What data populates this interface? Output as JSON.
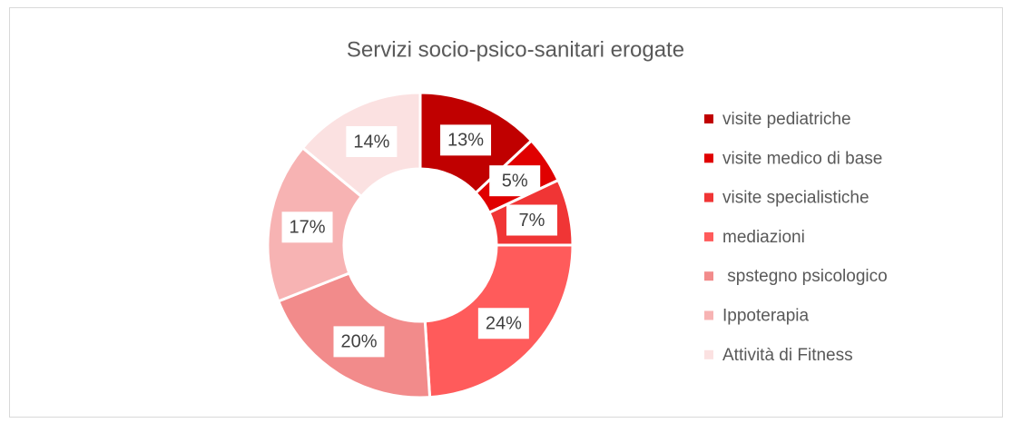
{
  "chart_data": {
    "type": "donut",
    "title": "Servizi socio-psico-sanitari erogate",
    "categories": [
      "visite pediatriche",
      "visite medico di base",
      "visite specialistiche",
      "mediazioni",
      " spstegno psicologico",
      "Ippoterapia",
      "Attività di Fitness"
    ],
    "values": [
      13,
      5,
      7,
      24,
      20,
      17,
      14
    ],
    "value_labels": [
      "13%",
      "5%",
      "7%",
      "24%",
      "20%",
      "17%",
      "14%"
    ],
    "colors": [
      "#c00000",
      "#e00000",
      "#f03535",
      "#ff5b5b",
      "#f28b8b",
      "#f7b3b3",
      "#fbe1e1"
    ],
    "legend": "right"
  }
}
